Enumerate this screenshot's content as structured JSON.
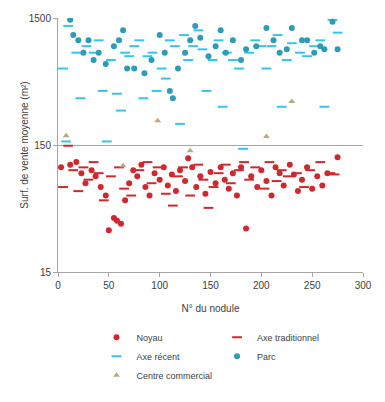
{
  "chart_data": {
    "type": "scatter",
    "x_label": "N° du nodule",
    "y_label": "Surf. de vente moyenne (m²)",
    "log": "y",
    "grid": "y",
    "legend": "bottom",
    "xlim": [
      0,
      300
    ],
    "xticks": [
      0,
      50,
      100,
      150,
      200,
      250,
      300
    ],
    "ylim": [
      15,
      1500
    ],
    "yticks": [
      15,
      150,
      1500
    ],
    "series": [
      {
        "name": "Noyau",
        "color": "#d0282e",
        "marker": "circle",
        "x": [
          3,
          12,
          18,
          23,
          27,
          33,
          37,
          42,
          47,
          50,
          55,
          58,
          62,
          66,
          70,
          74,
          78,
          82,
          86,
          90,
          95,
          100,
          104,
          108,
          112,
          116,
          120,
          125,
          128,
          132,
          136,
          140,
          145,
          150,
          155,
          160,
          164,
          168,
          172,
          176,
          180,
          185,
          190,
          196,
          200,
          205,
          210,
          214,
          218,
          222,
          228,
          232,
          236,
          240,
          245,
          250,
          255,
          260,
          265,
          275
        ],
        "values": [
          100,
          105,
          110,
          90,
          75,
          95,
          85,
          70,
          60,
          32,
          40,
          38,
          36,
          55,
          75,
          95,
          85,
          105,
          70,
          60,
          90,
          80,
          100,
          72,
          88,
          65,
          95,
          78,
          118,
          100,
          70,
          85,
          62,
          92,
          75,
          100,
          80,
          68,
          90,
          60,
          100,
          33,
          85,
          70,
          95,
          78,
          60,
          100,
          90,
          72,
          105,
          88,
          65,
          80,
          100,
          68,
          85,
          72,
          90,
          120
        ]
      },
      {
        "name": "Axe traditionnel",
        "color": "#d0282e",
        "marker": "dash",
        "x": [
          5,
          10,
          15,
          20,
          25,
          30,
          35,
          40,
          45,
          52,
          60,
          65,
          72,
          80,
          88,
          92,
          98,
          106,
          113,
          118,
          123,
          130,
          138,
          143,
          148,
          153,
          158,
          165,
          170,
          178,
          183,
          188,
          194,
          203,
          208,
          215,
          220,
          226,
          235,
          242,
          248,
          258,
          268,
          272
        ],
        "values": [
          70,
          148,
          95,
          65,
          100,
          80,
          110,
          90,
          55,
          85,
          100,
          68,
          60,
          95,
          110,
          75,
          100,
          62,
          50,
          85,
          100,
          60,
          105,
          80,
          48,
          70,
          90,
          105,
          75,
          95,
          110,
          80,
          100,
          68,
          110,
          78,
          95,
          85,
          90,
          70,
          95,
          110,
          90,
          88
        ]
      },
      {
        "name": "Axe récent",
        "color": "#33c6ea",
        "marker": "dash",
        "x": [
          5,
          8,
          10,
          18,
          22,
          28,
          35,
          40,
          44,
          48,
          52,
          58,
          62,
          66,
          70,
          75,
          80,
          84,
          88,
          93,
          97,
          102,
          106,
          110,
          115,
          120,
          124,
          128,
          133,
          138,
          142,
          146,
          152,
          158,
          162,
          166,
          172,
          178,
          182,
          188,
          194,
          200,
          205,
          210,
          216,
          220,
          225,
          230,
          238,
          245,
          252,
          258,
          262,
          270,
          275
        ],
        "values": [
          600,
          160,
          1300,
          800,
          350,
          900,
          800,
          1000,
          400,
          160,
          700,
          380,
          280,
          800,
          750,
          900,
          1000,
          350,
          750,
          800,
          400,
          600,
          500,
          1000,
          900,
          220,
          1100,
          700,
          900,
          1200,
          850,
          400,
          700,
          1000,
          300,
          800,
          700,
          600,
          140,
          800,
          1000,
          900,
          600,
          900,
          1100,
          300,
          700,
          950,
          800,
          750,
          900,
          1000,
          300,
          1450,
          1150
        ]
      },
      {
        "name": "Parc",
        "color": "#2e9bb8",
        "marker": "circle",
        "x": [
          12,
          15,
          20,
          25,
          30,
          35,
          40,
          47,
          55,
          60,
          64,
          68,
          75,
          85,
          92,
          100,
          105,
          110,
          113,
          118,
          125,
          130,
          135,
          140,
          148,
          155,
          160,
          165,
          172,
          180,
          185,
          195,
          205,
          212,
          218,
          225,
          230,
          240,
          245,
          252,
          258,
          262,
          270,
          275
        ],
        "values": [
          1450,
          1100,
          1000,
          800,
          1000,
          700,
          800,
          650,
          900,
          1000,
          1200,
          600,
          600,
          550,
          700,
          1100,
          800,
          400,
          350,
          600,
          800,
          1000,
          1300,
          1050,
          750,
          900,
          1200,
          800,
          1000,
          700,
          850,
          900,
          1250,
          1000,
          800,
          850,
          1250,
          1000,
          1000,
          800,
          900,
          850,
          1400,
          850
        ]
      },
      {
        "name": "Centre commercial",
        "color": "#b5ab7a",
        "marker": "triangle",
        "x": [
          8,
          64,
          98,
          130,
          205,
          230
        ],
        "values": [
          177,
          103,
          233,
          135,
          175,
          330
        ]
      }
    ]
  }
}
